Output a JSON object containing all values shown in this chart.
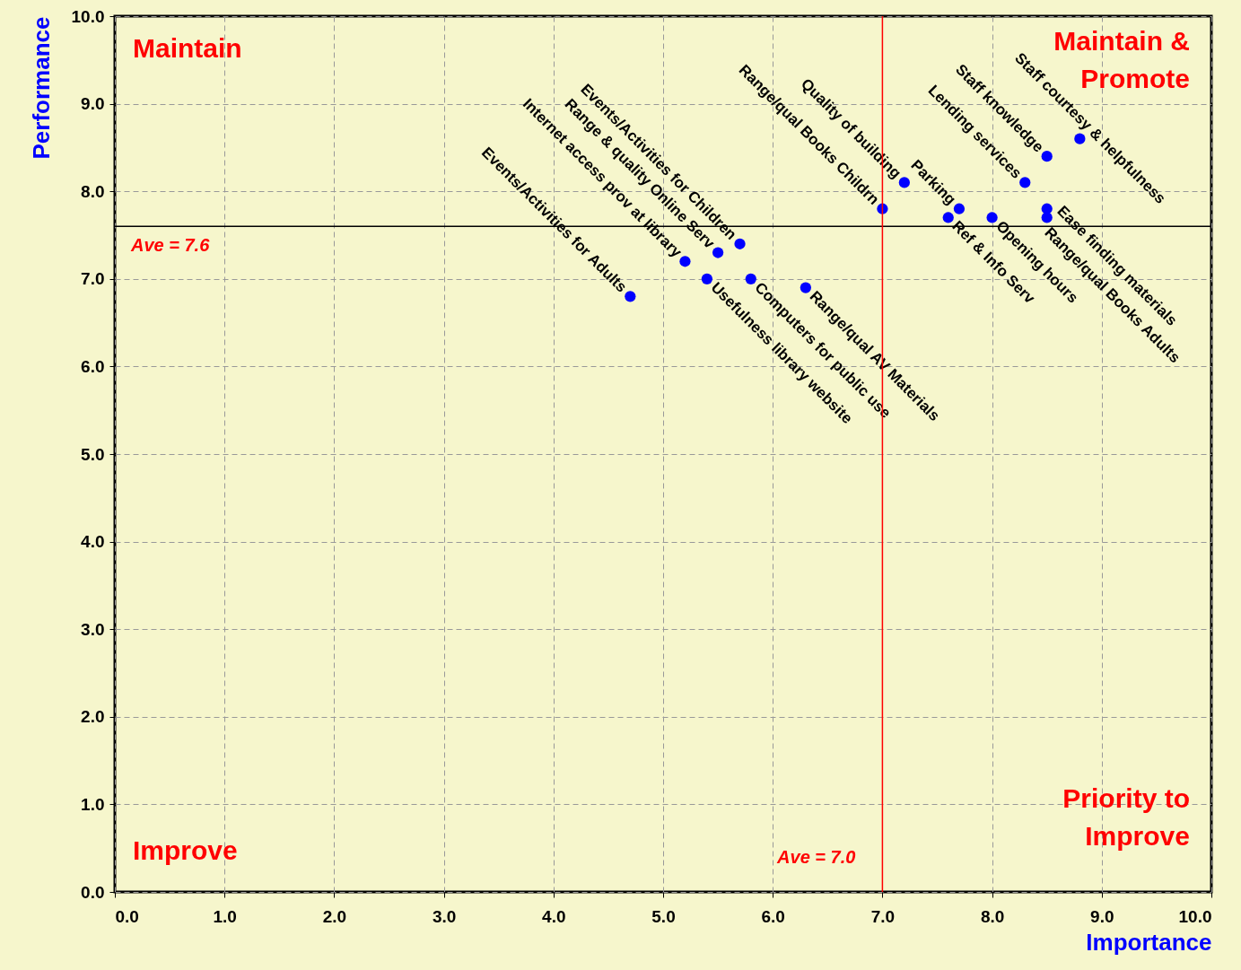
{
  "chart_data": {
    "type": "scatter",
    "xlabel": "Importance",
    "ylabel": "Performance",
    "xlim": [
      0,
      10
    ],
    "ylim": [
      0,
      10
    ],
    "xticks": [
      {
        "value": 0,
        "label": "0.0"
      },
      {
        "value": 1,
        "label": "1.0"
      },
      {
        "value": 2,
        "label": "2.0"
      },
      {
        "value": 3,
        "label": "3.0"
      },
      {
        "value": 4,
        "label": "4.0"
      },
      {
        "value": 5,
        "label": "5.0"
      },
      {
        "value": 6,
        "label": "6.0"
      },
      {
        "value": 7,
        "label": "7.0"
      },
      {
        "value": 8,
        "label": "8.0"
      },
      {
        "value": 9,
        "label": "9.0"
      },
      {
        "value": 10,
        "label": "10.0"
      }
    ],
    "yticks": [
      {
        "value": 0,
        "label": "0.0"
      },
      {
        "value": 1,
        "label": "1.0"
      },
      {
        "value": 2,
        "label": "2.0"
      },
      {
        "value": 3,
        "label": "3.0"
      },
      {
        "value": 4,
        "label": "4.0"
      },
      {
        "value": 5,
        "label": "5.0"
      },
      {
        "value": 6,
        "label": "6.0"
      },
      {
        "value": 7,
        "label": "7.0"
      },
      {
        "value": 8,
        "label": "8.0"
      },
      {
        "value": 9,
        "label": "9.0"
      },
      {
        "value": 10,
        "label": "10.0"
      }
    ],
    "grid": true,
    "marker": "circle",
    "series": [
      {
        "color": "#0000ff",
        "x": [
          4.7,
          5.2,
          5.5,
          5.7,
          7.0,
          7.2,
          7.7,
          8.3,
          8.5
        ],
        "values": [
          6.8,
          7.2,
          7.3,
          7.4,
          7.8,
          8.1,
          7.8,
          8.1,
          8.4
        ],
        "value_labels": [
          "Events/Activities for Adults",
          "Internet access prov at library",
          "Range & quality Online Serv",
          "Events/Activities for Children",
          "Range/qual Books Childrn",
          "Quality of building",
          "Parking",
          "Lending services",
          "Staff knowledge"
        ]
      },
      {
        "color": "#0000ff",
        "x": [
          5.4,
          5.8,
          6.3,
          7.6,
          8.0,
          8.5,
          8.5
        ],
        "values": [
          7.0,
          7.0,
          6.9,
          7.7,
          7.7,
          7.8,
          7.7
        ],
        "value_labels": [
          "Usefulness library website",
          "Computers for public use",
          "Range/qual AV Materials",
          "Ref & Info Serv",
          "Opening hours",
          "Ease finding materials",
          "Range/qual Books Adults"
        ]
      },
      {
        "color": "#0000ff",
        "x": [
          8.8
        ],
        "values": [
          8.6
        ],
        "value_labels": [
          "Staff courtesy & helpfulness"
        ]
      }
    ],
    "ref_lines": [
      {
        "axis": "y",
        "value": 7.6,
        "label": "Ave = 7.6",
        "color": "#000000"
      },
      {
        "axis": "x",
        "value": 7.0,
        "label": "Ave = 7.0",
        "color": "#ff0000"
      }
    ],
    "annotations": [
      "Maintain",
      "Maintain &\nPromote",
      "Improve",
      "Priority to\nImprove"
    ]
  }
}
